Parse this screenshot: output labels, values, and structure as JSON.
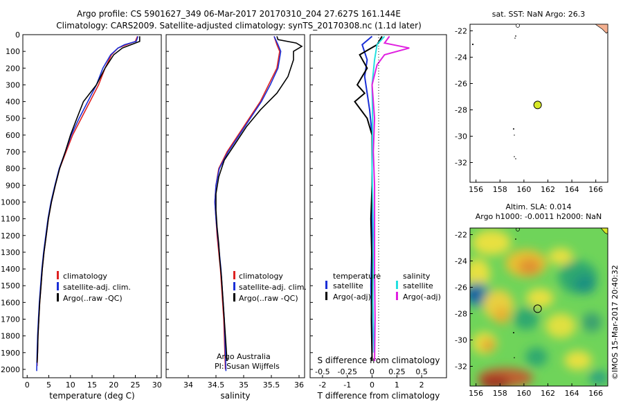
{
  "header": {
    "line1": "Argo profile: CS 5901627_349 06-Mar-2017 20170310_204 27.627S 161.144E",
    "line2": "Climatology: CARS2009. Satellite-adjusted climatology: synTS_20170308.nc (1.1d later)"
  },
  "colors": {
    "clim": "#dd2222",
    "sat": "#1a2fd6",
    "argo": "#000000",
    "sat_sal": "#22e0e0",
    "argo_sal": "#e020e0"
  },
  "chart_data": [
    {
      "type": "line",
      "id": "temperature",
      "xlabel": "temperature (deg C)",
      "ylabel": "",
      "xlim": [
        -1,
        31
      ],
      "ylim": [
        0,
        2050
      ],
      "xticks": [
        0,
        5,
        10,
        15,
        20,
        25,
        30
      ],
      "yticks": [
        0,
        100,
        200,
        300,
        400,
        500,
        600,
        700,
        800,
        900,
        1000,
        1100,
        1200,
        1300,
        1400,
        1500,
        1600,
        1700,
        1800,
        1900,
        2000
      ],
      "legend": [
        "climatology",
        "satellite-adj. clim.",
        "Argo(..raw -QC)"
      ],
      "series": [
        {
          "name": "climatology",
          "points": [
            [
              25.5,
              10
            ],
            [
              25,
              40
            ],
            [
              23,
              60
            ],
            [
              21,
              80
            ],
            [
              19.5,
              120
            ],
            [
              18,
              200
            ],
            [
              16.5,
              300
            ],
            [
              14.5,
              400
            ],
            [
              12.5,
              500
            ],
            [
              10.5,
              600
            ],
            [
              9,
              700
            ],
            [
              7.5,
              800
            ],
            [
              6.5,
              900
            ],
            [
              5.6,
              1000
            ],
            [
              4.9,
              1100
            ],
            [
              4.4,
              1200
            ],
            [
              3.9,
              1300
            ],
            [
              3.5,
              1400
            ],
            [
              3.2,
              1500
            ],
            [
              2.9,
              1600
            ],
            [
              2.7,
              1700
            ],
            [
              2.5,
              1800
            ],
            [
              2.4,
              1900
            ],
            [
              2.3,
              1980
            ]
          ]
        },
        {
          "name": "satellite-adj. clim.",
          "points": [
            [
              25.6,
              10
            ],
            [
              25.2,
              40
            ],
            [
              22.5,
              60
            ],
            [
              21,
              80
            ],
            [
              19.3,
              120
            ],
            [
              17.5,
              200
            ],
            [
              16,
              300
            ],
            [
              14,
              400
            ],
            [
              12,
              500
            ],
            [
              10.2,
              600
            ],
            [
              8.8,
              700
            ],
            [
              7.4,
              800
            ],
            [
              6.4,
              900
            ],
            [
              5.5,
              1000
            ],
            [
              4.8,
              1100
            ],
            [
              4.3,
              1200
            ],
            [
              3.8,
              1300
            ],
            [
              3.4,
              1400
            ],
            [
              3.1,
              1500
            ],
            [
              2.8,
              1600
            ],
            [
              2.6,
              1700
            ],
            [
              2.4,
              1800
            ],
            [
              2.3,
              1900
            ],
            [
              2.2,
              2010
            ]
          ]
        },
        {
          "name": "Argo(..raw -QC)",
          "points": [
            [
              26,
              10
            ],
            [
              26,
              40
            ],
            [
              24,
              60
            ],
            [
              22,
              80
            ],
            [
              20,
              120
            ],
            [
              18,
              200
            ],
            [
              16,
              300
            ],
            [
              14.5,
              350
            ],
            [
              13,
              400
            ],
            [
              11.5,
              500
            ],
            [
              10,
              600
            ],
            [
              8.8,
              700
            ],
            [
              7.5,
              800
            ],
            [
              6.5,
              900
            ],
            [
              5.6,
              1000
            ],
            [
              4.9,
              1100
            ],
            [
              4.4,
              1200
            ],
            [
              3.9,
              1300
            ],
            [
              3.5,
              1400
            ],
            [
              3.2,
              1500
            ],
            [
              2.9,
              1600
            ],
            [
              2.7,
              1700
            ],
            [
              2.5,
              1800
            ],
            [
              2.4,
              1900
            ],
            [
              2.3,
              1960
            ]
          ]
        }
      ]
    },
    {
      "type": "line",
      "id": "salinity",
      "xlabel": "salinity",
      "xlim": [
        33.6,
        36.1
      ],
      "ylim": [
        0,
        2050
      ],
      "xticks": [
        34,
        34.5,
        35,
        35.5,
        36
      ],
      "legend": [
        "climatology",
        "satellite-adj. clim.",
        "Argo(..raw -QC)"
      ],
      "annotation": [
        "Argo Australia",
        "PI: Susan Wijffels"
      ],
      "series": [
        {
          "name": "climatology",
          "points": [
            [
              35.55,
              10
            ],
            [
              35.6,
              60
            ],
            [
              35.65,
              100
            ],
            [
              35.6,
              200
            ],
            [
              35.45,
              300
            ],
            [
              35.3,
              400
            ],
            [
              35.1,
              500
            ],
            [
              34.9,
              600
            ],
            [
              34.7,
              700
            ],
            [
              34.55,
              800
            ],
            [
              34.5,
              900
            ],
            [
              34.48,
              1000
            ],
            [
              34.5,
              1100
            ],
            [
              34.52,
              1200
            ],
            [
              34.55,
              1300
            ],
            [
              34.58,
              1400
            ],
            [
              34.6,
              1500
            ],
            [
              34.62,
              1600
            ],
            [
              34.64,
              1700
            ],
            [
              34.65,
              1800
            ],
            [
              34.66,
              1900
            ],
            [
              34.67,
              2000
            ]
          ]
        },
        {
          "name": "satellite-adj. clim.",
          "points": [
            [
              35.55,
              10
            ],
            [
              35.62,
              60
            ],
            [
              35.67,
              100
            ],
            [
              35.62,
              200
            ],
            [
              35.48,
              300
            ],
            [
              35.32,
              400
            ],
            [
              35.12,
              500
            ],
            [
              34.92,
              600
            ],
            [
              34.72,
              700
            ],
            [
              34.56,
              800
            ],
            [
              34.5,
              900
            ],
            [
              34.48,
              1000
            ],
            [
              34.5,
              1100
            ],
            [
              34.53,
              1200
            ],
            [
              34.56,
              1300
            ],
            [
              34.59,
              1400
            ],
            [
              34.61,
              1500
            ],
            [
              34.63,
              1600
            ],
            [
              34.65,
              1700
            ],
            [
              34.66,
              1800
            ],
            [
              34.67,
              1900
            ],
            [
              34.68,
              2010
            ]
          ]
        },
        {
          "name": "Argo(..raw -QC)",
          "points": [
            [
              35.6,
              10
            ],
            [
              35.62,
              30
            ],
            [
              35.95,
              50
            ],
            [
              36.05,
              70
            ],
            [
              35.95,
              90
            ],
            [
              35.9,
              100
            ],
            [
              35.9,
              150
            ],
            [
              35.8,
              250
            ],
            [
              35.6,
              350
            ],
            [
              35.3,
              450
            ],
            [
              35.05,
              550
            ],
            [
              34.85,
              650
            ],
            [
              34.65,
              750
            ],
            [
              34.55,
              850
            ],
            [
              34.5,
              950
            ],
            [
              34.5,
              1050
            ],
            [
              34.52,
              1150
            ],
            [
              34.55,
              1250
            ],
            [
              34.57,
              1350
            ],
            [
              34.6,
              1450
            ],
            [
              34.62,
              1550
            ],
            [
              34.64,
              1650
            ],
            [
              34.66,
              1750
            ],
            [
              34.68,
              1850
            ],
            [
              34.7,
              1950
            ]
          ]
        }
      ]
    },
    {
      "type": "line",
      "id": "difference",
      "xlabel": "T difference from climatology",
      "top_label": "S difference from climatology",
      "xlim": [
        -2.5,
        3
      ],
      "ylim": [
        0,
        2050
      ],
      "xticks": [
        -2,
        -1,
        0,
        1,
        2
      ],
      "top_ticks": [
        "-0.5",
        "-0.25",
        "0",
        "0.25",
        "0.5"
      ],
      "top_tick_positions": [
        -2,
        -1,
        0,
        1,
        2
      ],
      "legend": [
        "temperature",
        "satellite",
        "Argo(-adj)",
        "salinity",
        "satellite",
        "Argo(-adj)"
      ],
      "series": [
        {
          "name": "T satellite",
          "points": [
            [
              0,
              10
            ],
            [
              -0.4,
              60
            ],
            [
              -0.2,
              150
            ],
            [
              -0.3,
              250
            ],
            [
              -0.2,
              350
            ],
            [
              -0.1,
              450
            ],
            [
              0,
              600
            ],
            [
              0,
              800
            ],
            [
              0,
              1000
            ],
            [
              0,
              1200
            ],
            [
              -0.05,
              1500
            ],
            [
              0,
              1800
            ],
            [
              0,
              1900
            ]
          ]
        },
        {
          "name": "T Argo(-adj)",
          "points": [
            [
              0.4,
              10
            ],
            [
              0.2,
              60
            ],
            [
              -0.5,
              120
            ],
            [
              -0.2,
              200
            ],
            [
              -0.6,
              300
            ],
            [
              -0.3,
              350
            ],
            [
              -0.7,
              400
            ],
            [
              -0.2,
              500
            ],
            [
              0,
              600
            ],
            [
              0,
              900
            ],
            [
              -0.05,
              1100
            ],
            [
              0,
              1400
            ],
            [
              -0.03,
              1700
            ],
            [
              0,
              1950
            ]
          ]
        },
        {
          "name": "S satellite",
          "points": [
            [
              0.5,
              10
            ],
            [
              0.2,
              60
            ],
            [
              0.1,
              150
            ],
            [
              0,
              300
            ],
            [
              0.02,
              500
            ],
            [
              0,
              800
            ],
            [
              0.05,
              1200
            ],
            [
              0.03,
              1600
            ],
            [
              0.08,
              1900
            ]
          ]
        },
        {
          "name": "S Argo(-adj)",
          "points": [
            [
              0.7,
              10
            ],
            [
              0.5,
              50
            ],
            [
              1.5,
              80
            ],
            [
              0.5,
              120
            ],
            [
              0.2,
              180
            ],
            [
              0,
              300
            ],
            [
              0.1,
              500
            ],
            [
              0.05,
              700
            ],
            [
              0.1,
              900
            ],
            [
              0.1,
              1100
            ],
            [
              0.1,
              1400
            ],
            [
              0.12,
              1700
            ],
            [
              0.1,
              1950
            ]
          ]
        }
      ]
    },
    {
      "type": "scatter",
      "id": "sst-map",
      "title": "sat. SST: NaN Argo: 26.3",
      "xlim": [
        155.5,
        167
      ],
      "ylim": [
        -33.5,
        -21.5
      ],
      "xticks": [
        156,
        158,
        160,
        162,
        164,
        166
      ],
      "yticks": [
        -22,
        -24,
        -26,
        -28,
        -30,
        -32
      ],
      "marker": {
        "lon": 161.144,
        "lat": -27.627
      }
    },
    {
      "type": "heatmap",
      "id": "sla-map",
      "title_line1": "Altim. SLA: 0.014",
      "title_line2": "Argo h1000: -0.0011 h2000: NaN",
      "xlim": [
        155.5,
        167
      ],
      "ylim": [
        -33.5,
        -21.5
      ],
      "xticks": [
        156,
        158,
        160,
        162,
        164,
        166
      ],
      "yticks": [
        -22,
        -24,
        -26,
        -28,
        -30,
        -32
      ],
      "marker": {
        "lon": 161.144,
        "lat": -27.627
      }
    }
  ],
  "watermark": "©IMOS 15-Mar-2017 20:40:32"
}
